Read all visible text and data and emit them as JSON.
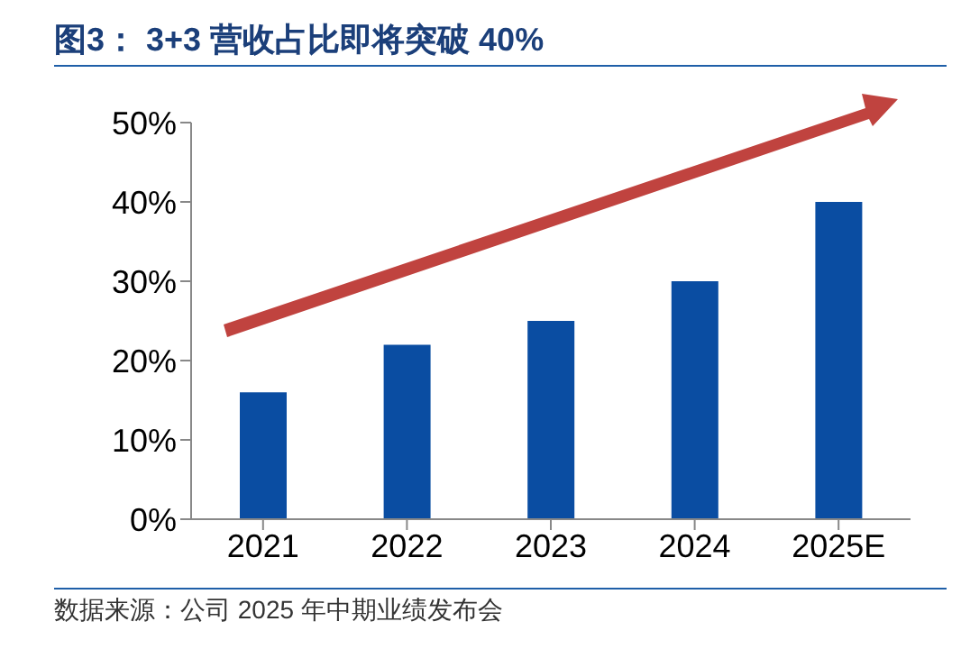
{
  "chart_data": {
    "type": "bar",
    "title": "图3： 3+3 营收占比即将突破 40%",
    "categories": [
      "2021",
      "2022",
      "2023",
      "2024",
      "2025E"
    ],
    "values": [
      16,
      22,
      25,
      30,
      40
    ],
    "color": "#0a4da2",
    "ylim": [
      0,
      50
    ],
    "yticks": [
      {
        "value": 0,
        "label": "0%"
      },
      {
        "value": 10,
        "label": "10%"
      },
      {
        "value": 20,
        "label": "20%"
      },
      {
        "value": 30,
        "label": "30%"
      },
      {
        "value": 40,
        "label": "40%"
      },
      {
        "value": 50,
        "label": "50%"
      }
    ],
    "grid": false,
    "annotations": [
      "数据来源：公司 2025 年中期业绩发布会"
    ]
  }
}
